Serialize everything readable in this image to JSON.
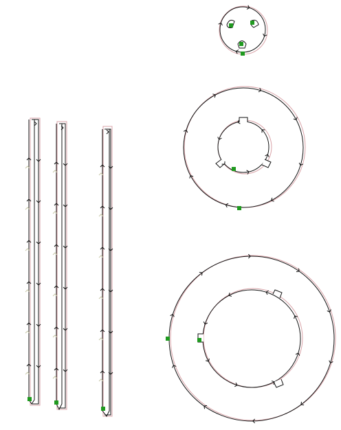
{
  "colors": {
    "background": "#ffffff",
    "path_stroke": "#111111",
    "offset_stroke": "#d9a3a8",
    "arrow_stroke": "#111111",
    "faint_arrow": "#c8c8a8",
    "start_marker": "#1f9a1f"
  },
  "icons": {
    "direction": "chevron-arrow-icon",
    "start": "green-square-marker-icon"
  },
  "elements": {
    "strips": 3,
    "small_ring_holes": 3,
    "medium_ring_notches": 3,
    "large_ring_notches": 3
  }
}
